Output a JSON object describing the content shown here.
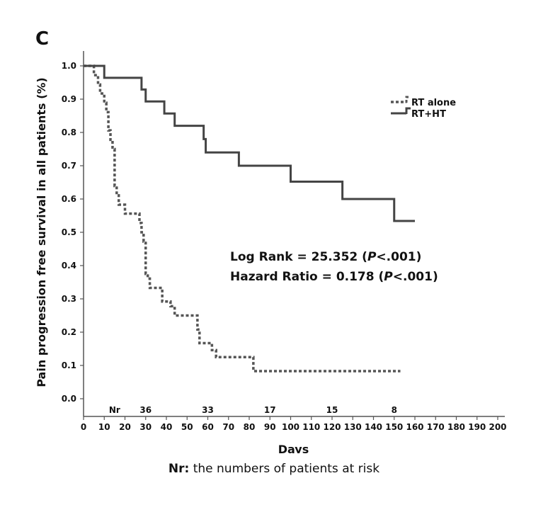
{
  "panel_label": "C",
  "footnote": {
    "label": "Nr:",
    "text": " the numbers of patients at risk"
  },
  "chart_data": {
    "type": "line",
    "title": "",
    "xlabel": "Days",
    "ylabel": "Pain progression free survival in all patients (%)",
    "xlim": [
      0,
      200
    ],
    "ylim": [
      0,
      1.0
    ],
    "xticks": [
      0,
      10,
      20,
      30,
      40,
      50,
      60,
      70,
      80,
      90,
      100,
      110,
      120,
      130,
      140,
      150,
      160,
      170,
      180,
      190,
      200
    ],
    "yticks": [
      "0.0",
      "0.1",
      "0.2",
      "0.3",
      "0.4",
      "0.5",
      "0.6",
      "0.7",
      "0.8",
      "0.9",
      "1.0"
    ],
    "grid": false,
    "legend_position": "top-right",
    "series": [
      {
        "name": "RT alone",
        "style": "dashed",
        "color": "#555555",
        "x": [
          0,
          5,
          7,
          8,
          10,
          11,
          12,
          13,
          14,
          15,
          16,
          17,
          18,
          20,
          25,
          27,
          28,
          29,
          30,
          31,
          32,
          36,
          38,
          40,
          42,
          44,
          46,
          54,
          55,
          56,
          58,
          60,
          62,
          64,
          66,
          75,
          82,
          153
        ],
        "y": [
          1.0,
          0.972,
          0.944,
          0.917,
          0.889,
          0.861,
          0.806,
          0.778,
          0.75,
          0.639,
          0.611,
          0.583,
          0.583,
          0.556,
          0.556,
          0.528,
          0.5,
          0.472,
          0.375,
          0.361,
          0.333,
          0.333,
          0.292,
          0.292,
          0.278,
          0.25,
          0.25,
          0.25,
          0.208,
          0.167,
          0.167,
          0.167,
          0.146,
          0.125,
          0.125,
          0.125,
          0.083,
          0.083
        ]
      },
      {
        "name": "RT+HT",
        "style": "solid",
        "color": "#444444",
        "x": [
          0,
          10,
          28,
          30,
          39,
          44,
          58,
          59,
          60,
          70,
          74,
          75,
          85,
          90,
          100,
          110,
          115,
          120,
          125,
          140,
          150,
          151,
          160
        ],
        "y": [
          1.0,
          0.964,
          0.929,
          0.893,
          0.857,
          0.82,
          0.78,
          0.74,
          0.74,
          0.74,
          0.74,
          0.7,
          0.7,
          0.7,
          0.652,
          0.652,
          0.652,
          0.652,
          0.6,
          0.6,
          0.534,
          0.534,
          0.534
        ]
      }
    ],
    "at_risk": {
      "label": "Nr",
      "values": [
        {
          "x": 30,
          "n": "36"
        },
        {
          "x": 60,
          "n": "33"
        },
        {
          "x": 90,
          "n": "17"
        },
        {
          "x": 120,
          "n": "15"
        },
        {
          "x": 150,
          "n": "8"
        }
      ]
    },
    "annotations": [
      {
        "bold": "Log Rank = 25.352 (",
        "italic": "P",
        "rest": "<.001)"
      },
      {
        "bold": "Hazard Ratio = 0.178 (",
        "italic": "P",
        "rest": "<.001)"
      }
    ]
  }
}
